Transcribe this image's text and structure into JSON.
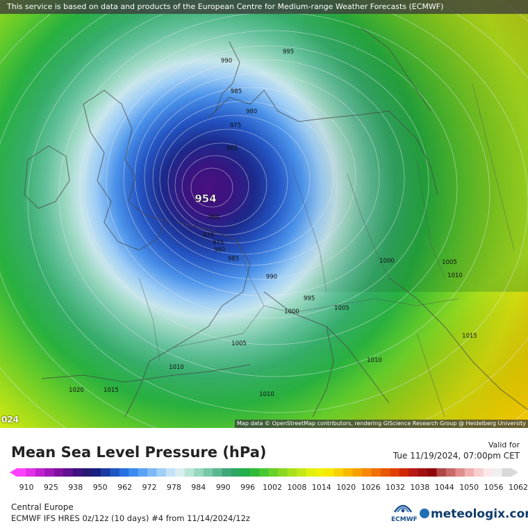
{
  "header": {
    "notice": "This service is based on data and products of the European Centre for Medium-range Weather Forecasts (ECMWF)"
  },
  "map": {
    "attribution": "Map data © OpenStreetMap contributors, rendering GIScience Research Group @ Heidelberg University",
    "corner_number": "024",
    "low_center_label": "954",
    "isobar_labels": [
      {
        "text": "995",
        "id": "995-north"
      },
      {
        "text": "990",
        "id": "990-north"
      },
      {
        "text": "985",
        "id": "985-north"
      },
      {
        "text": "980",
        "id": "980-north"
      },
      {
        "text": "975",
        "id": "975-north"
      },
      {
        "text": "965",
        "id": "965-west"
      },
      {
        "text": "960",
        "id": "960-center"
      },
      {
        "text": "970",
        "id": "970-south"
      },
      {
        "text": "975",
        "id": "975-south"
      },
      {
        "text": "980",
        "id": "980-south"
      },
      {
        "text": "985",
        "id": "985-south"
      },
      {
        "text": "990",
        "id": "990-south"
      },
      {
        "text": "995",
        "id": "995-alps"
      },
      {
        "text": "1000",
        "id": "1000-alps"
      },
      {
        "text": "1005",
        "id": "1005-alps"
      },
      {
        "text": "1000",
        "id": "1000-east"
      },
      {
        "text": "1005",
        "id": "1005-east"
      },
      {
        "text": "1010",
        "id": "1010-east"
      },
      {
        "text": "1015",
        "id": "1015-east"
      },
      {
        "text": "1005",
        "id": "1005-south"
      },
      {
        "text": "1010",
        "id": "1010-balkan"
      },
      {
        "text": "1010",
        "id": "1010-west"
      },
      {
        "text": "1015",
        "id": "1015-west"
      },
      {
        "text": "1020",
        "id": "1020-west"
      },
      {
        "text": "1010",
        "id": "1010-med"
      }
    ]
  },
  "legend": {
    "title": "Mean Sea Level Pressure (hPa)",
    "valid_label": "Valid for",
    "valid_date": "Tue 11/19/2024, 07:00pm CET",
    "ticks": [
      "910",
      "925",
      "938",
      "950",
      "962",
      "972",
      "978",
      "984",
      "990",
      "996",
      "1002",
      "1008",
      "1014",
      "1020",
      "1026",
      "1032",
      "1038",
      "1044",
      "1050",
      "1056",
      "1062"
    ],
    "colors": [
      "#ff40ff",
      "#e030e8",
      "#c020d0",
      "#a018b8",
      "#8010a0",
      "#601090",
      "#401080",
      "#281870",
      "#182080",
      "#1a3aa0",
      "#1e56c0",
      "#2670e0",
      "#3a8af0",
      "#5aa2f4",
      "#7cb8f6",
      "#a0cff8",
      "#c4e2f8",
      "#d8eef0",
      "#b8e6d6",
      "#98d8c0",
      "#78c8a8",
      "#5ab890",
      "#40a878",
      "#2ca860",
      "#22b048",
      "#30bc38",
      "#48c830",
      "#68d028",
      "#88d820",
      "#a8e018",
      "#c4e818",
      "#e0f010",
      "#f0f008",
      "#f8e800",
      "#f8d000",
      "#f8b800",
      "#f8a000",
      "#f88800",
      "#f07000",
      "#e85800",
      "#e04000",
      "#d02800",
      "#b81818",
      "#a01010",
      "#900808",
      "#b04848",
      "#c86868",
      "#e08c8c",
      "#f0b0b0",
      "#f8d0d0",
      "#fce8e8",
      "#f0f0f0",
      "#d8d8d8"
    ],
    "region": "Central Europe",
    "model_run": "ECMWF IFS HRES 0z/12z (10 days) #4 from  11/14/2024/12z",
    "ecmwf_logo_text": "ECMWF",
    "brand": "meteologix.com"
  }
}
